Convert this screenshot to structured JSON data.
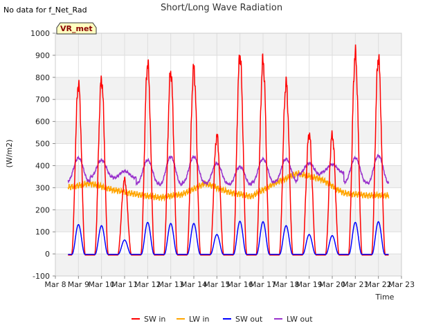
{
  "header": {
    "title": "Short/Long Wave Radiation",
    "no_data_note": "No data for f_Net_Rad",
    "badge": "VR_met"
  },
  "chart_data": {
    "type": "line",
    "title": "Short/Long Wave Radiation",
    "xlabel": "Time",
    "ylabel": "(W/m2)",
    "ylim": [
      -100,
      1000
    ],
    "yticks": [
      -100,
      0,
      100,
      200,
      300,
      400,
      500,
      600,
      700,
      800,
      900,
      1000
    ],
    "xlim": [
      8,
      23
    ],
    "xticks": [
      8,
      9,
      10,
      11,
      12,
      13,
      14,
      15,
      16,
      17,
      18,
      19,
      20,
      21,
      22,
      23
    ],
    "xtick_labels": [
      "Mar 8",
      "Mar 9",
      "Mar 10",
      "Mar 11",
      "Mar 12",
      "Mar 13",
      "Mar 14",
      "Mar 15",
      "Mar 16",
      "Mar 17",
      "Mar 18",
      "Mar 19",
      "Mar 20",
      "Mar 21",
      "Mar 22",
      "Mar 23"
    ],
    "grid": true,
    "legend_position": "bottom-center",
    "daily_peaks": {
      "day_start": [
        8.5,
        9.5,
        10.5,
        11.5,
        12.5,
        13.5,
        14.5,
        15.5,
        16.5,
        17.5,
        18.5,
        19.5,
        20.5,
        21.5
      ],
      "sw_in": [
        775,
        795,
        340,
        865,
        830,
        845,
        540,
        905,
        880,
        780,
        550,
        545,
        910,
        895
      ],
      "sw_out": [
        135,
        130,
        65,
        145,
        140,
        140,
        90,
        150,
        148,
        130,
        90,
        85,
        145,
        148
      ],
      "lw_out_day": [
        435,
        425,
        375,
        425,
        440,
        440,
        410,
        395,
        430,
        430,
        410,
        405,
        435,
        445
      ],
      "lw_out_night": [
        330,
        350,
        345,
        320,
        315,
        325,
        320,
        315,
        325,
        330,
        360,
        370,
        325,
        320
      ],
      "lw_in": [
        300,
        320,
        290,
        270,
        255,
        270,
        320,
        280,
        260,
        320,
        365,
        340,
        275,
        265
      ]
    },
    "series": [
      {
        "name": "SW in",
        "color": "#ff0000"
      },
      {
        "name": "LW in",
        "color": "#ffa500"
      },
      {
        "name": "SW out",
        "color": "#0000ff"
      },
      {
        "name": "LW out",
        "color": "#9932cc"
      }
    ]
  }
}
